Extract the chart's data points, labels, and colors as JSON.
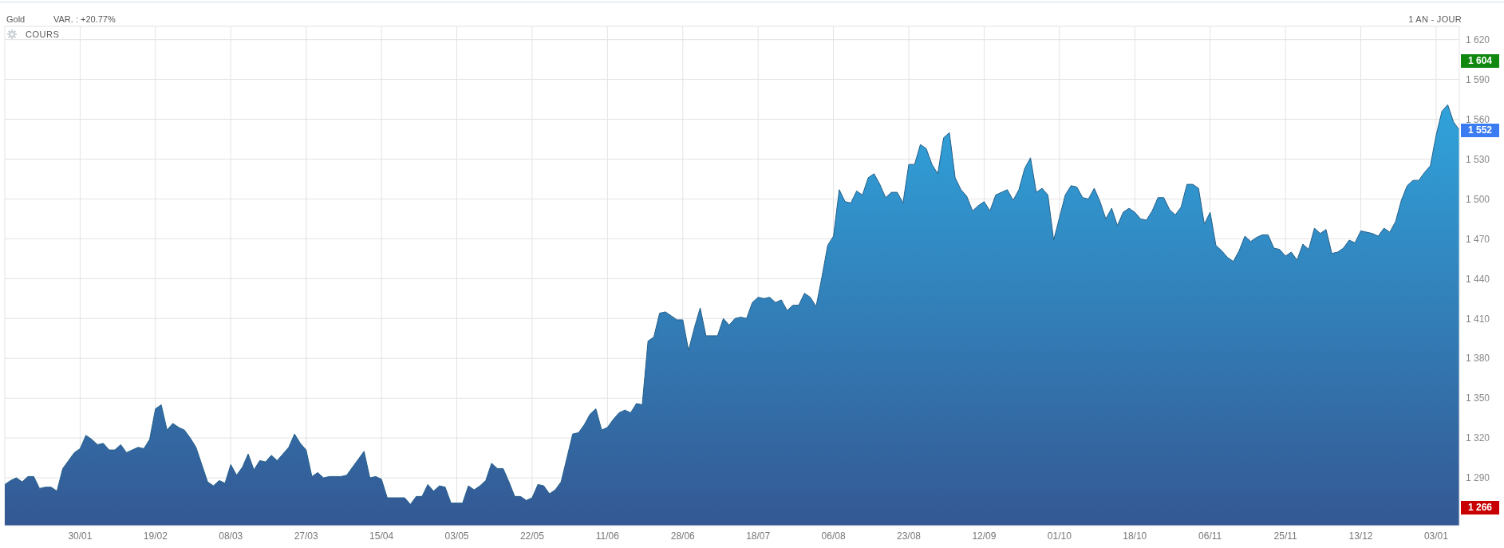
{
  "chart_data": {
    "type": "area",
    "title": "Gold",
    "subtitle": "VAR. : +20.77%",
    "annotations": [
      "1 AN - JOUR",
      "COURS",
      "1 604",
      "1 552",
      "1 266"
    ],
    "categories": [
      null,
      null,
      null,
      null,
      null,
      null,
      null,
      null,
      null,
      null,
      null,
      null,
      null,
      "30/01",
      null,
      null,
      null,
      null,
      null,
      null,
      null,
      null,
      null,
      null,
      null,
      null,
      "19/02",
      null,
      null,
      null,
      null,
      null,
      null,
      null,
      null,
      null,
      null,
      null,
      null,
      "08/03",
      null,
      null,
      null,
      null,
      null,
      null,
      null,
      null,
      null,
      null,
      null,
      null,
      "27/03",
      null,
      null,
      null,
      null,
      null,
      null,
      null,
      null,
      null,
      null,
      null,
      null,
      "15/04",
      null,
      null,
      null,
      null,
      null,
      null,
      null,
      null,
      null,
      null,
      null,
      null,
      "03/05",
      null,
      null,
      null,
      null,
      null,
      null,
      null,
      null,
      null,
      null,
      null,
      null,
      "22/05",
      null,
      null,
      null,
      null,
      null,
      null,
      null,
      null,
      null,
      null,
      null,
      null,
      "11/06",
      null,
      null,
      null,
      null,
      null,
      null,
      null,
      null,
      null,
      null,
      null,
      null,
      "28/06",
      null,
      null,
      null,
      null,
      null,
      null,
      null,
      null,
      null,
      null,
      null,
      null,
      "18/07",
      null,
      null,
      null,
      null,
      null,
      null,
      null,
      null,
      null,
      null,
      null,
      null,
      "06/08",
      null,
      null,
      null,
      null,
      null,
      null,
      null,
      null,
      null,
      null,
      null,
      null,
      "23/08",
      null,
      null,
      null,
      null,
      null,
      null,
      null,
      null,
      null,
      null,
      null,
      null,
      "12/09",
      null,
      null,
      null,
      null,
      null,
      null,
      null,
      null,
      null,
      null,
      null,
      null,
      "01/10",
      null,
      null,
      null,
      null,
      null,
      null,
      null,
      null,
      null,
      null,
      null,
      null,
      "18/10",
      null,
      null,
      null,
      null,
      null,
      null,
      null,
      null,
      null,
      null,
      null,
      null,
      "06/11",
      null,
      null,
      null,
      null,
      null,
      null,
      null,
      null,
      null,
      null,
      null,
      null,
      "25/11",
      null,
      null,
      null,
      null,
      null,
      null,
      null,
      null,
      null,
      null,
      null,
      null,
      "13/12",
      null,
      null,
      null,
      null,
      null,
      null,
      null,
      null,
      null,
      null,
      null,
      null,
      "03/01",
      null,
      null,
      null,
      null
    ],
    "values": [
      1285,
      1288,
      1290,
      1287,
      1291,
      1291,
      1282,
      1283,
      1283,
      1280,
      1297,
      1303,
      1309,
      1312,
      1322,
      1319,
      1315,
      1316,
      1311,
      1311,
      1315,
      1309,
      1311,
      1313,
      1312,
      1319,
      1342,
      1345,
      1326,
      1331,
      1328,
      1326,
      1320,
      1313,
      1300,
      1287,
      1284,
      1288,
      1286,
      1300,
      1292,
      1298,
      1308,
      1296,
      1303,
      1302,
      1307,
      1303,
      1308,
      1313,
      1323,
      1316,
      1311,
      1291,
      1294,
      1290,
      1291,
      1291,
      1291,
      1292,
      1298,
      1304,
      1310,
      1290,
      1291,
      1289,
      1275,
      1275,
      1275,
      1275,
      1270,
      1276,
      1276,
      1285,
      1280,
      1284,
      1283,
      1271,
      1271,
      1271,
      1284,
      1281,
      1284,
      1288,
      1301,
      1297,
      1297,
      1287,
      1276,
      1276,
      1273,
      1275,
      1285,
      1284,
      1278,
      1281,
      1287,
      1305,
      1323,
      1324,
      1330,
      1338,
      1342,
      1326,
      1328,
      1334,
      1339,
      1341,
      1339,
      1346,
      1345,
      1393,
      1396,
      1414,
      1415,
      1412,
      1409,
      1409,
      1386,
      1403,
      1418,
      1397,
      1397,
      1397,
      1410,
      1405,
      1410,
      1411,
      1410,
      1422,
      1426,
      1425,
      1426,
      1422,
      1424,
      1416,
      1420,
      1420,
      1429,
      1426,
      1419,
      1441,
      1465,
      1472,
      1507,
      1498,
      1497,
      1506,
      1503,
      1516,
      1519,
      1511,
      1501,
      1505,
      1505,
      1497,
      1526,
      1526,
      1541,
      1538,
      1526,
      1519,
      1546,
      1550,
      1516,
      1507,
      1502,
      1491,
      1495,
      1498,
      1491,
      1503,
      1505,
      1507,
      1499,
      1507,
      1523,
      1531,
      1505,
      1508,
      1503,
      1469,
      1486,
      1503,
      1510,
      1509,
      1501,
      1500,
      1508,
      1498,
      1485,
      1493,
      1480,
      1490,
      1493,
      1490,
      1485,
      1484,
      1491,
      1501,
      1501,
      1492,
      1488,
      1494,
      1511,
      1511,
      1508,
      1481,
      1490,
      1465,
      1461,
      1456,
      1453,
      1461,
      1472,
      1468,
      1471,
      1473,
      1473,
      1463,
      1462,
      1457,
      1460,
      1454,
      1466,
      1462,
      1478,
      1474,
      1477,
      1459,
      1460,
      1463,
      1469,
      1467,
      1476,
      1475,
      1474,
      1472,
      1478,
      1475,
      1483,
      1499,
      1510,
      1514,
      1514,
      1520,
      1525,
      1548,
      1566,
      1571,
      1558,
      1552
    ],
    "color": "#3285be",
    "ylim": [
      1254,
      1630
    ],
    "yticks": [
      {
        "value": 1290,
        "label": "1 290"
      },
      {
        "value": 1320,
        "label": "1 320"
      },
      {
        "value": 1350,
        "label": "1 350"
      },
      {
        "value": 1380,
        "label": "1 380"
      },
      {
        "value": 1410,
        "label": "1 410"
      },
      {
        "value": 1440,
        "label": "1 440"
      },
      {
        "value": 1470,
        "label": "1 470"
      },
      {
        "value": 1500,
        "label": "1 500"
      },
      {
        "value": 1530,
        "label": "1 530"
      },
      {
        "value": 1560,
        "label": "1 560"
      },
      {
        "value": 1590,
        "label": "1 590"
      },
      {
        "value": 1620,
        "label": "1 620"
      }
    ],
    "grid": true
  }
}
